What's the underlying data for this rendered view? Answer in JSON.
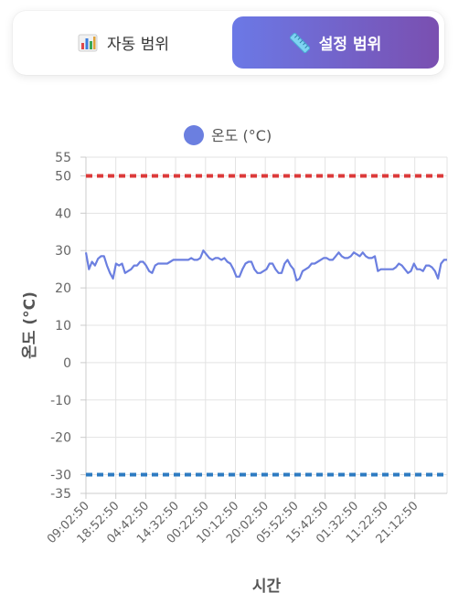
{
  "toggle": {
    "auto_label": "자동 범위",
    "auto_icon": "bar-chart-icon",
    "manual_label": "설정 범위",
    "manual_icon": "ruler-icon",
    "active": "manual",
    "accent_from": "#6b79e6",
    "accent_to": "#7a4fb0"
  },
  "chart_data": {
    "type": "line",
    "xlabel": "시간",
    "ylabel": "온도 (°C)",
    "ylim": [
      -35,
      55
    ],
    "yticks": [
      -35,
      -30,
      -20,
      -10,
      0,
      10,
      20,
      30,
      40,
      50,
      55
    ],
    "xtick_labels": [
      "09:02:50",
      "18:52:50",
      "04:42:50",
      "14:32:50",
      "00:22:50",
      "10:12:50",
      "20:02:50",
      "05:52:50",
      "15:42:50",
      "01:32:50",
      "11:22:50",
      "21:12:50"
    ],
    "grid": true,
    "legend_position": "top-center",
    "series": [
      {
        "name": "온도 (°C)",
        "color": "#6b7fe0",
        "values": [
          29.5,
          25,
          27,
          26,
          27.8,
          28.5,
          28.5,
          26,
          24,
          22.5,
          26.5,
          26,
          26.5,
          24,
          24.5,
          25,
          26,
          26,
          27,
          27,
          26,
          24.5,
          24,
          26,
          26.5,
          26.5,
          26.5,
          26.5,
          27,
          27.5,
          27.5,
          27.5,
          27.5,
          27.5,
          27.5,
          28,
          27.5,
          27.5,
          28,
          30,
          29,
          28,
          27.5,
          28,
          28,
          27.5,
          28,
          27,
          26.5,
          25,
          23,
          23,
          25,
          26.5,
          27,
          27,
          25,
          24,
          24,
          24.5,
          25,
          26.5,
          26.5,
          25,
          24,
          24,
          26.5,
          27.5,
          26,
          25,
          22,
          22.5,
          24.5,
          25,
          25.5,
          26.5,
          26.5,
          27,
          27.5,
          28,
          28,
          27.5,
          27.5,
          28.5,
          29.5,
          28.5,
          28,
          28,
          28.5,
          29.5,
          29,
          28.5,
          29.5,
          28.5,
          28,
          28,
          28.5,
          24.5,
          25,
          25,
          25,
          25,
          25,
          25.5,
          26.5,
          26,
          25,
          24,
          24.5,
          26.5,
          25,
          25,
          24.5,
          26,
          26,
          25.5,
          24.5,
          22.5,
          26.5,
          27.5,
          27.5
        ]
      }
    ],
    "thresholds": [
      {
        "value": 50,
        "color": "#dc3a3a"
      },
      {
        "value": -30,
        "color": "#2e7bc2"
      }
    ]
  }
}
